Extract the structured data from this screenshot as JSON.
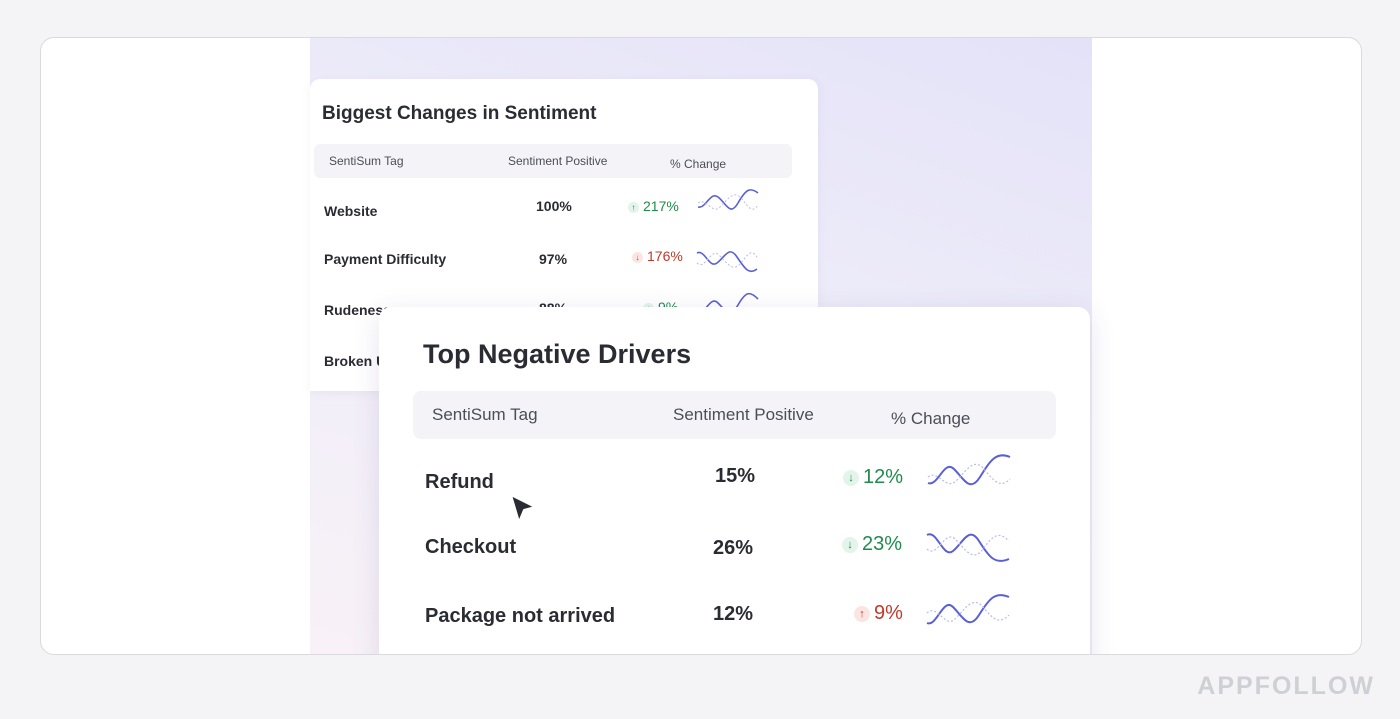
{
  "back_card": {
    "title": "Biggest Changes in Sentiment",
    "headers": {
      "tag": "SentiSum Tag",
      "sentiment": "Sentiment Positive",
      "change": "% Change"
    },
    "rows": [
      {
        "label": "Website",
        "value": "100%",
        "change": "217%",
        "direction": "up",
        "tone": "green"
      },
      {
        "label": "Payment Difficulty",
        "value": "97%",
        "change": "176%",
        "direction": "down",
        "tone": "red"
      },
      {
        "label": "Rudeness",
        "value": "88%",
        "change": "9%",
        "direction": "up",
        "tone": "green"
      },
      {
        "label": "Broken U",
        "value": "",
        "change": "",
        "direction": "",
        "tone": ""
      }
    ]
  },
  "front_card": {
    "title": "Top Negative Drivers",
    "headers": {
      "tag": "SentiSum Tag",
      "sentiment": "Sentiment Positive",
      "change": "% Change"
    },
    "rows": [
      {
        "label": "Refund",
        "value": "15%",
        "change": "12%",
        "direction": "down",
        "tone": "green"
      },
      {
        "label": "Checkout",
        "value": "26%",
        "change": "23%",
        "direction": "down",
        "tone": "green"
      },
      {
        "label": "Package not arrived",
        "value": "12%",
        "change": "9%",
        "direction": "up",
        "tone": "red"
      }
    ]
  },
  "icons": {
    "arrow_up": "↑",
    "arrow_down": "↓",
    "cursor": "mouse-pointer-icon"
  },
  "colors": {
    "positive": "#1f8b4c",
    "negative": "#c0392b",
    "sparkline": "#5b5fd6",
    "background_accent": "#e4e2f8"
  },
  "brand": {
    "name": "APPFOLLOW"
  }
}
